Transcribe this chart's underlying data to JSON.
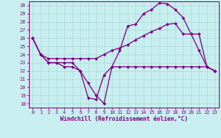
{
  "title": "",
  "xlabel": "Windchill (Refroidissement éolien,°C)",
  "background_color": "#c8eef0",
  "line_color": "#800080",
  "grid_color": "#a8d8d8",
  "x_values": [
    0,
    1,
    2,
    3,
    4,
    5,
    6,
    7,
    8,
    9,
    10,
    11,
    12,
    13,
    14,
    15,
    16,
    17,
    18,
    19,
    20,
    21,
    22,
    23
  ],
  "line1": [
    26,
    24,
    23,
    23,
    22.5,
    22.5,
    22,
    18.7,
    18.5,
    21.5,
    22.5,
    22.5,
    22.5,
    22.5,
    22.5,
    22.5,
    22.5,
    22.5,
    22.5,
    22.5,
    22.5,
    22.5,
    22.5,
    22
  ],
  "line2": [
    26,
    24,
    23,
    23,
    23,
    23,
    22,
    20.5,
    19.0,
    18.0,
    22.5,
    24.5,
    27.5,
    27.7,
    29.0,
    29.5,
    30.3,
    30.2,
    29.5,
    28.5,
    26.5,
    24.5,
    22.5,
    22
  ],
  "line3": [
    26,
    24,
    23.5,
    23.5,
    23.5,
    23.5,
    23.5,
    23.5,
    23.5,
    24,
    24.5,
    24.8,
    25.2,
    25.8,
    26.3,
    26.8,
    27.2,
    27.7,
    27.8,
    26.5,
    26.5,
    26.5,
    22.5,
    22
  ],
  "ylim_min": 17.5,
  "ylim_max": 30.5,
  "xlim_min": -0.5,
  "xlim_max": 23.5,
  "yticks": [
    18,
    19,
    20,
    21,
    22,
    23,
    24,
    25,
    26,
    27,
    28,
    29,
    30
  ],
  "xticks": [
    0,
    1,
    2,
    3,
    4,
    5,
    6,
    7,
    8,
    9,
    10,
    11,
    12,
    13,
    14,
    15,
    16,
    17,
    18,
    19,
    20,
    21,
    22,
    23
  ],
  "xtick_labels": [
    "0",
    "1",
    "2",
    "3",
    "4",
    "5",
    "6",
    "7",
    "8",
    "9",
    "10",
    "11",
    "12",
    "13",
    "14",
    "15",
    "16",
    "17",
    "18",
    "19",
    "20",
    "21",
    "22",
    "23"
  ],
  "marker": "D",
  "markersize": 2.2,
  "linewidth": 1.0,
  "tick_fontsize": 5.0,
  "xlabel_fontsize": 6.0,
  "spine_color": "#800080"
}
